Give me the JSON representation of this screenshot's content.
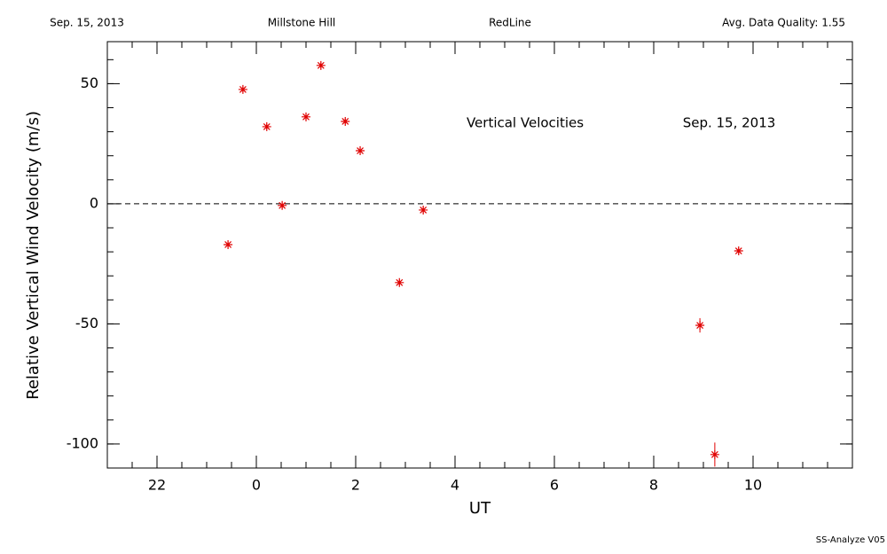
{
  "chart_data": {
    "type": "scatter",
    "header": [
      "Sep. 15, 2013",
      "Millstone Hill",
      "RedLine",
      "Avg. Data Quality: 1.55"
    ],
    "annotations": [
      "Vertical Velocities",
      "Sep. 15, 2013"
    ],
    "footer": "SS-Analyze V05",
    "xlabel": "UT",
    "ylabel": "Relative Vertical Wind Velocity (m/s)",
    "x": [
      -0.57,
      -0.27,
      0.21,
      0.52,
      1.0,
      1.3,
      1.79,
      2.09,
      2.88,
      3.36,
      8.93,
      9.23,
      9.71
    ],
    "series": [
      {
        "name": "Vertical Velocities",
        "color": "#e00000",
        "values": [
          -17,
          47.6,
          32.1,
          -0.7,
          36.2,
          57.6,
          34.3,
          22.1,
          -32.8,
          -2.6,
          -50.6,
          -104.4,
          -19.6
        ],
        "errors": [
          1,
          1,
          1,
          1,
          1,
          1,
          1,
          1,
          1,
          1,
          3,
          5,
          1
        ]
      }
    ],
    "xlim": [
      -3,
      12
    ],
    "ylim": [
      -110,
      67.5
    ],
    "xticks": [
      {
        "value": -2,
        "label": "22"
      },
      0,
      2,
      4,
      6,
      8,
      10
    ],
    "yticks": [
      50,
      0,
      -50,
      -100
    ],
    "xminor": 0.5,
    "yminor": 10,
    "hline": 0
  }
}
